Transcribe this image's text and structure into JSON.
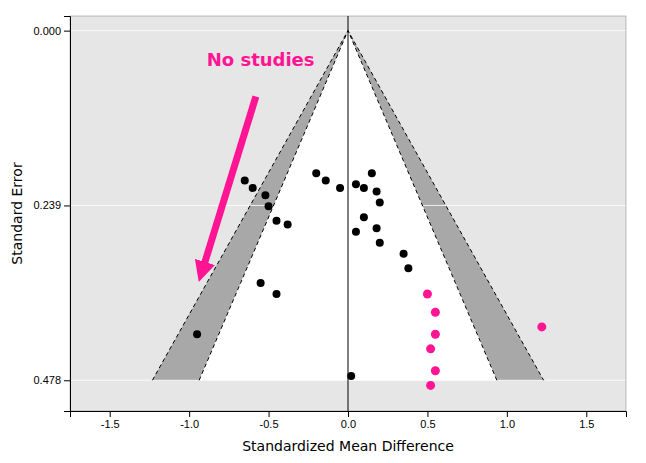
{
  "chart_data": {
    "type": "scatter",
    "x_label": "Standardized Mean Difference",
    "y_label": "Standard Error",
    "xlim": [
      -1.75,
      1.75
    ],
    "ylim": [
      0.52,
      -0.02
    ],
    "xticks": [
      -1.5,
      {
        "value": -1.0,
        "label": "-1.0"
      },
      -0.5,
      {
        "value": 0.0,
        "label": "0.0"
      },
      0.5,
      {
        "value": 1.0,
        "label": "1.0"
      },
      1.5
    ],
    "yticks": [
      {
        "value": 0,
        "label": "0.000"
      },
      0.239,
      0.478
    ],
    "grid": "y",
    "areas": [
      {
        "color": "#a8a8a8",
        "x": [
          -1.231328,
          0,
          -0.93688
        ],
        "y": [
          0.478,
          0,
          0.478
        ]
      },
      {
        "color": "#a8a8a8",
        "x": [
          0.93688,
          0,
          1.231328
        ],
        "y": [
          0.478,
          0,
          0.478
        ]
      },
      {
        "color": "#ffffff",
        "x": [
          -0.93688,
          0,
          0.93688
        ],
        "y": [
          0.478,
          0,
          0.478
        ]
      }
    ],
    "funnel_lines": [
      {
        "line_style": "dashed",
        "x": [
          -0.93688,
          0,
          0.93688
        ],
        "y": [
          0.478,
          0,
          0.478
        ]
      },
      {
        "line_style": "dashed",
        "x": [
          -1.231328,
          0,
          1.231328
        ],
        "y": [
          0.478,
          0,
          0.478
        ]
      }
    ],
    "reference_line": {
      "x": 0
    },
    "series": [
      {
        "color": "#000000",
        "x": [
          -0.95,
          -0.65,
          -0.6,
          -0.52,
          -0.5,
          -0.45,
          -0.38,
          -0.55,
          -0.45,
          -0.2,
          -0.14,
          -0.05,
          0.05,
          0.1,
          0.15,
          0.18,
          0.2,
          0.1,
          0.05,
          0.18,
          0.2,
          0.35,
          0.02,
          0.38
        ],
        "y": [
          0.415,
          0.205,
          0.215,
          0.225,
          0.24,
          0.26,
          0.265,
          0.345,
          0.36,
          0.195,
          0.205,
          0.215,
          0.21,
          0.215,
          0.195,
          0.22,
          0.235,
          0.255,
          0.275,
          0.27,
          0.29,
          0.305,
          0.472,
          0.325
        ]
      },
      {
        "color": "#ff1493",
        "x": [
          0.5,
          0.55,
          0.55,
          0.52,
          0.55,
          0.52,
          1.22
        ],
        "y": [
          0.36,
          0.385,
          0.415,
          0.435,
          0.465,
          0.485,
          0.405
        ]
      }
    ],
    "annotations": [
      {
        "text": "No studies",
        "x": -0.55,
        "y": 0.03,
        "color": "#ff1493"
      }
    ],
    "arrows": [
      {
        "color": "#ff1493",
        "x": [
          -0.58,
          -0.92
        ],
        "y": [
          0.09,
          0.33
        ]
      }
    ]
  }
}
